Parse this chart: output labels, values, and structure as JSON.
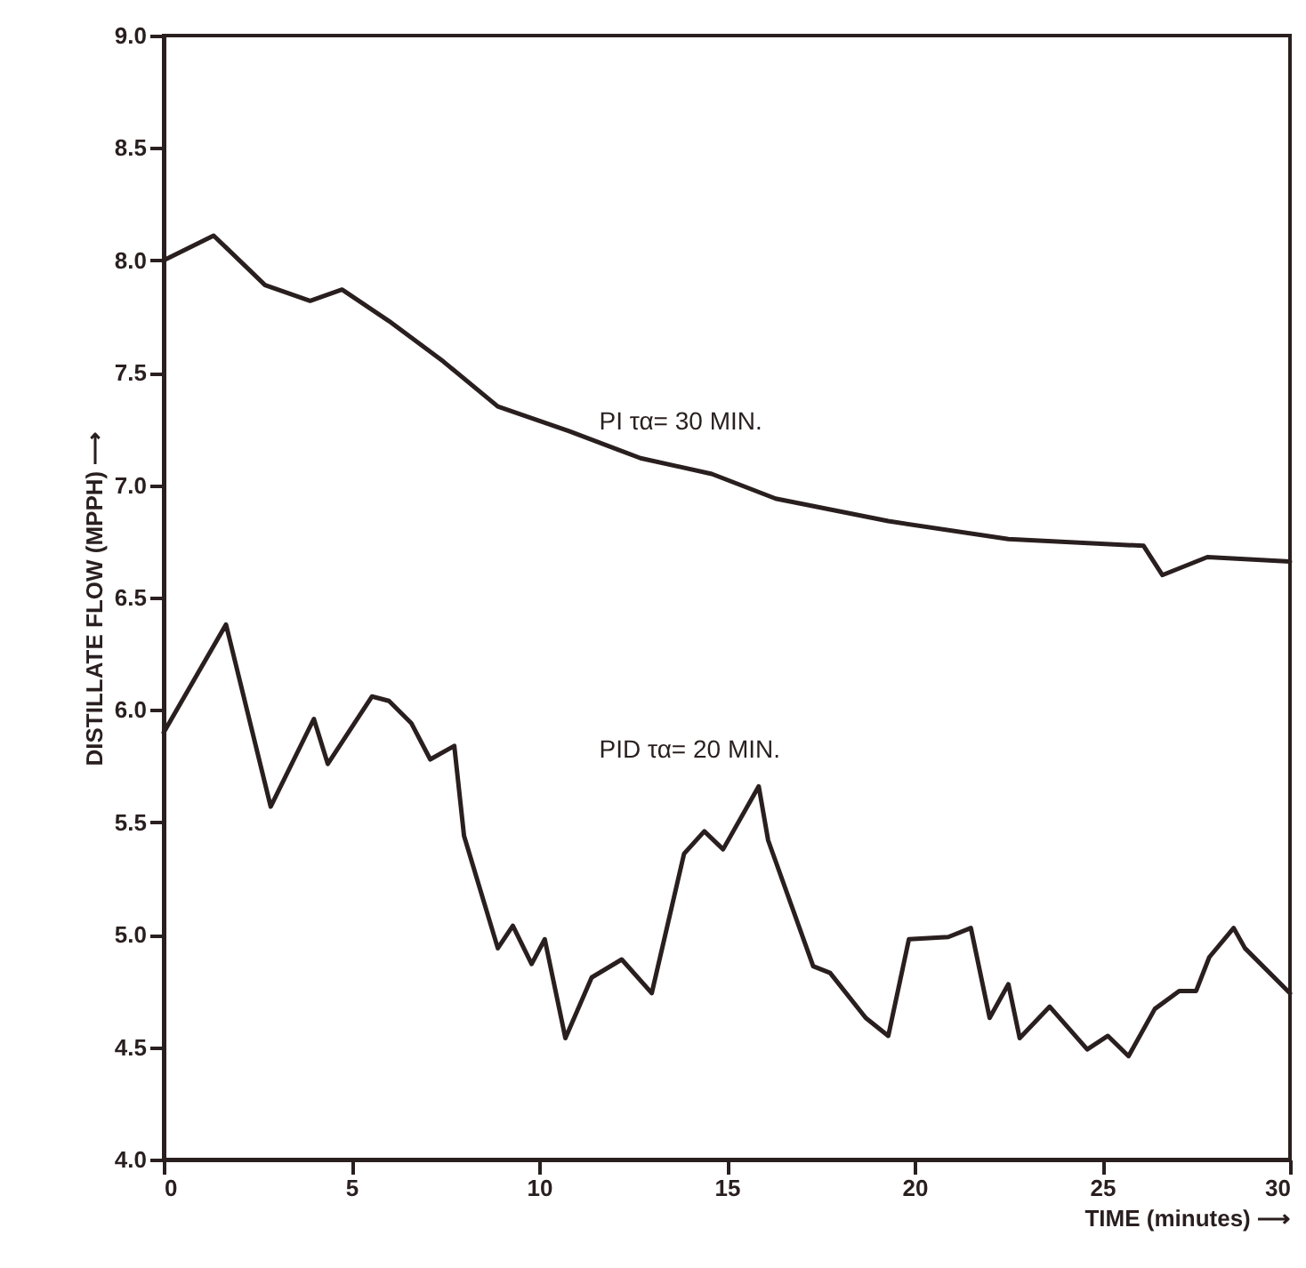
{
  "chart_data": {
    "type": "line",
    "xlabel": "TIME (minutes) ⟶",
    "ylabel": "DISTILLATE FLOW (MPPH) ⟶",
    "xlim": [
      0,
      30
    ],
    "xticks": [
      0,
      5,
      10,
      15,
      20,
      25,
      30
    ],
    "ylim": [
      4,
      9
    ],
    "yticks": [
      {
        "value": 4,
        "label": "4.0"
      },
      {
        "value": 4.5,
        "label": "4.5"
      },
      {
        "value": 5,
        "label": "5.0"
      },
      {
        "value": 5.5,
        "label": "5.5"
      },
      {
        "value": 6,
        "label": "6.0"
      },
      {
        "value": 6.5,
        "label": "6.5"
      },
      {
        "value": 7,
        "label": "7.0"
      },
      {
        "value": 7.5,
        "label": "7.5"
      },
      {
        "value": 8,
        "label": "8.0"
      },
      {
        "value": 8.5,
        "label": "8.5"
      },
      {
        "value": 9,
        "label": "9.0"
      }
    ],
    "grid": false,
    "marker": "none",
    "line_style": "solid",
    "series": [
      {
        "name": "PI τα= 30 MIN.",
        "color": "#2a1f1f",
        "x": [
          0,
          1.33,
          2.7,
          3.9,
          4.75,
          6.0,
          7.45,
          8.9,
          10.8,
          12.7,
          14.6,
          16.3,
          19.3,
          22.5,
          26.1,
          26.6,
          27.8,
          30
        ],
        "values": [
          8.0,
          8.11,
          7.89,
          7.82,
          7.87,
          7.73,
          7.55,
          7.35,
          7.24,
          7.12,
          7.05,
          6.94,
          6.84,
          6.76,
          6.73,
          6.6,
          6.68,
          6.66
        ]
      },
      {
        "name": "PID τα= 20 MIN.",
        "color": "#2a1f1f",
        "x": [
          0,
          1.66,
          2.85,
          4.0,
          4.37,
          5.55,
          6.0,
          6.6,
          7.1,
          7.74,
          8.0,
          8.9,
          9.3,
          9.8,
          10.15,
          10.7,
          11.4,
          12.2,
          13.0,
          13.86,
          14.4,
          14.9,
          15.85,
          16.1,
          17.3,
          17.75,
          18.7,
          19.3,
          19.85,
          20.9,
          21.5,
          22.0,
          22.5,
          22.8,
          23.6,
          24.6,
          25.15,
          25.7,
          26.4,
          27.05,
          27.5,
          27.85,
          28.5,
          28.8,
          30
        ],
        "values": [
          5.9,
          6.38,
          5.57,
          5.96,
          5.76,
          6.06,
          6.04,
          5.94,
          5.78,
          5.84,
          5.44,
          4.94,
          5.04,
          4.87,
          4.98,
          4.54,
          4.81,
          4.89,
          4.74,
          5.36,
          5.46,
          5.38,
          5.66,
          5.42,
          4.86,
          4.83,
          4.63,
          4.55,
          4.98,
          4.99,
          5.03,
          4.63,
          4.78,
          4.54,
          4.68,
          4.49,
          4.55,
          4.46,
          4.67,
          4.75,
          4.75,
          4.9,
          5.03,
          4.94,
          4.74
        ]
      }
    ]
  }
}
